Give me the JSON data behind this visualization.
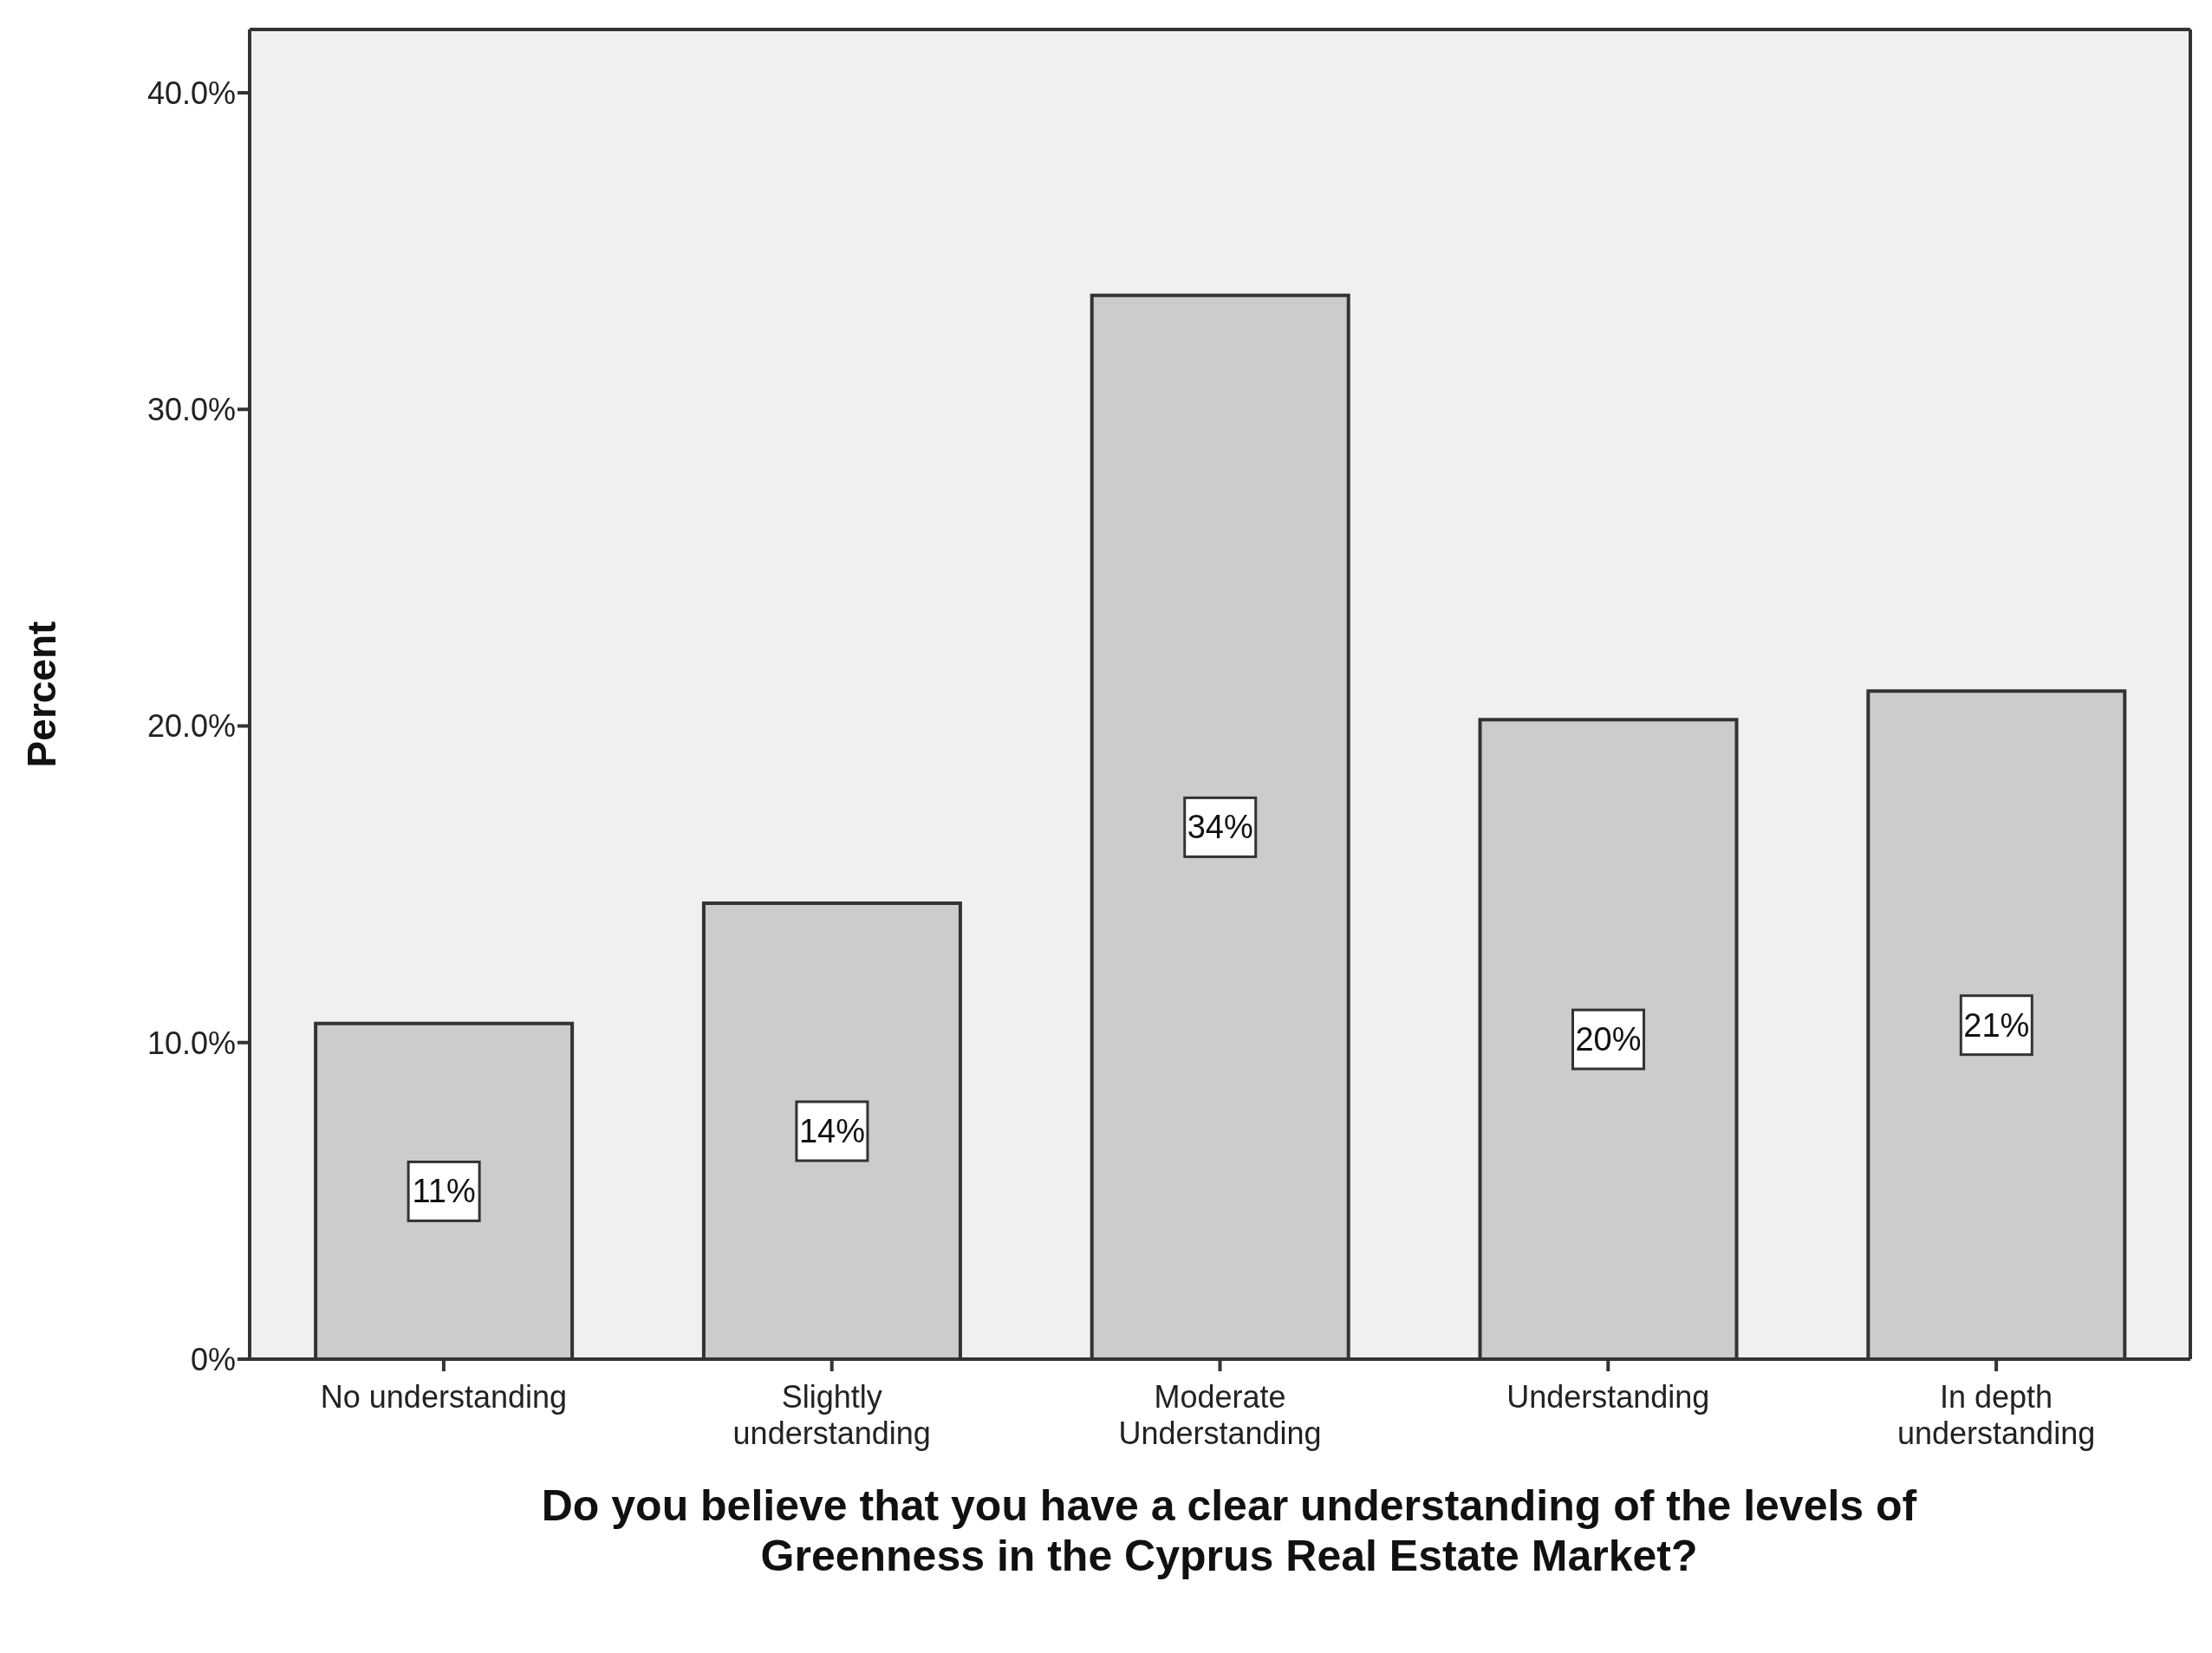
{
  "chart_data": {
    "type": "bar",
    "xlabel": "Do you believe that you have a clear understanding of the levels of Greenness in the Cyprus Real Estate Market?",
    "ylabel": "Percent",
    "categories": [
      "No understanding",
      "Slightly understanding",
      "Moderate Understanding",
      "Understanding",
      "In depth understanding"
    ],
    "values": [
      10.6,
      14.4,
      33.6,
      20.2,
      21.1
    ],
    "value_labels": [
      "11%",
      "14%",
      "34%",
      "20%",
      "21%"
    ],
    "color": "#cccccc",
    "ylim": [
      0,
      42
    ],
    "yticks": [
      {
        "value": 0,
        "label": "0%"
      },
      {
        "value": 10,
        "label": "10.0%"
      },
      {
        "value": 20,
        "label": "20.0%"
      },
      {
        "value": 30,
        "label": "30.0%"
      },
      {
        "value": 40,
        "label": "40.0%"
      }
    ],
    "grid": false
  }
}
